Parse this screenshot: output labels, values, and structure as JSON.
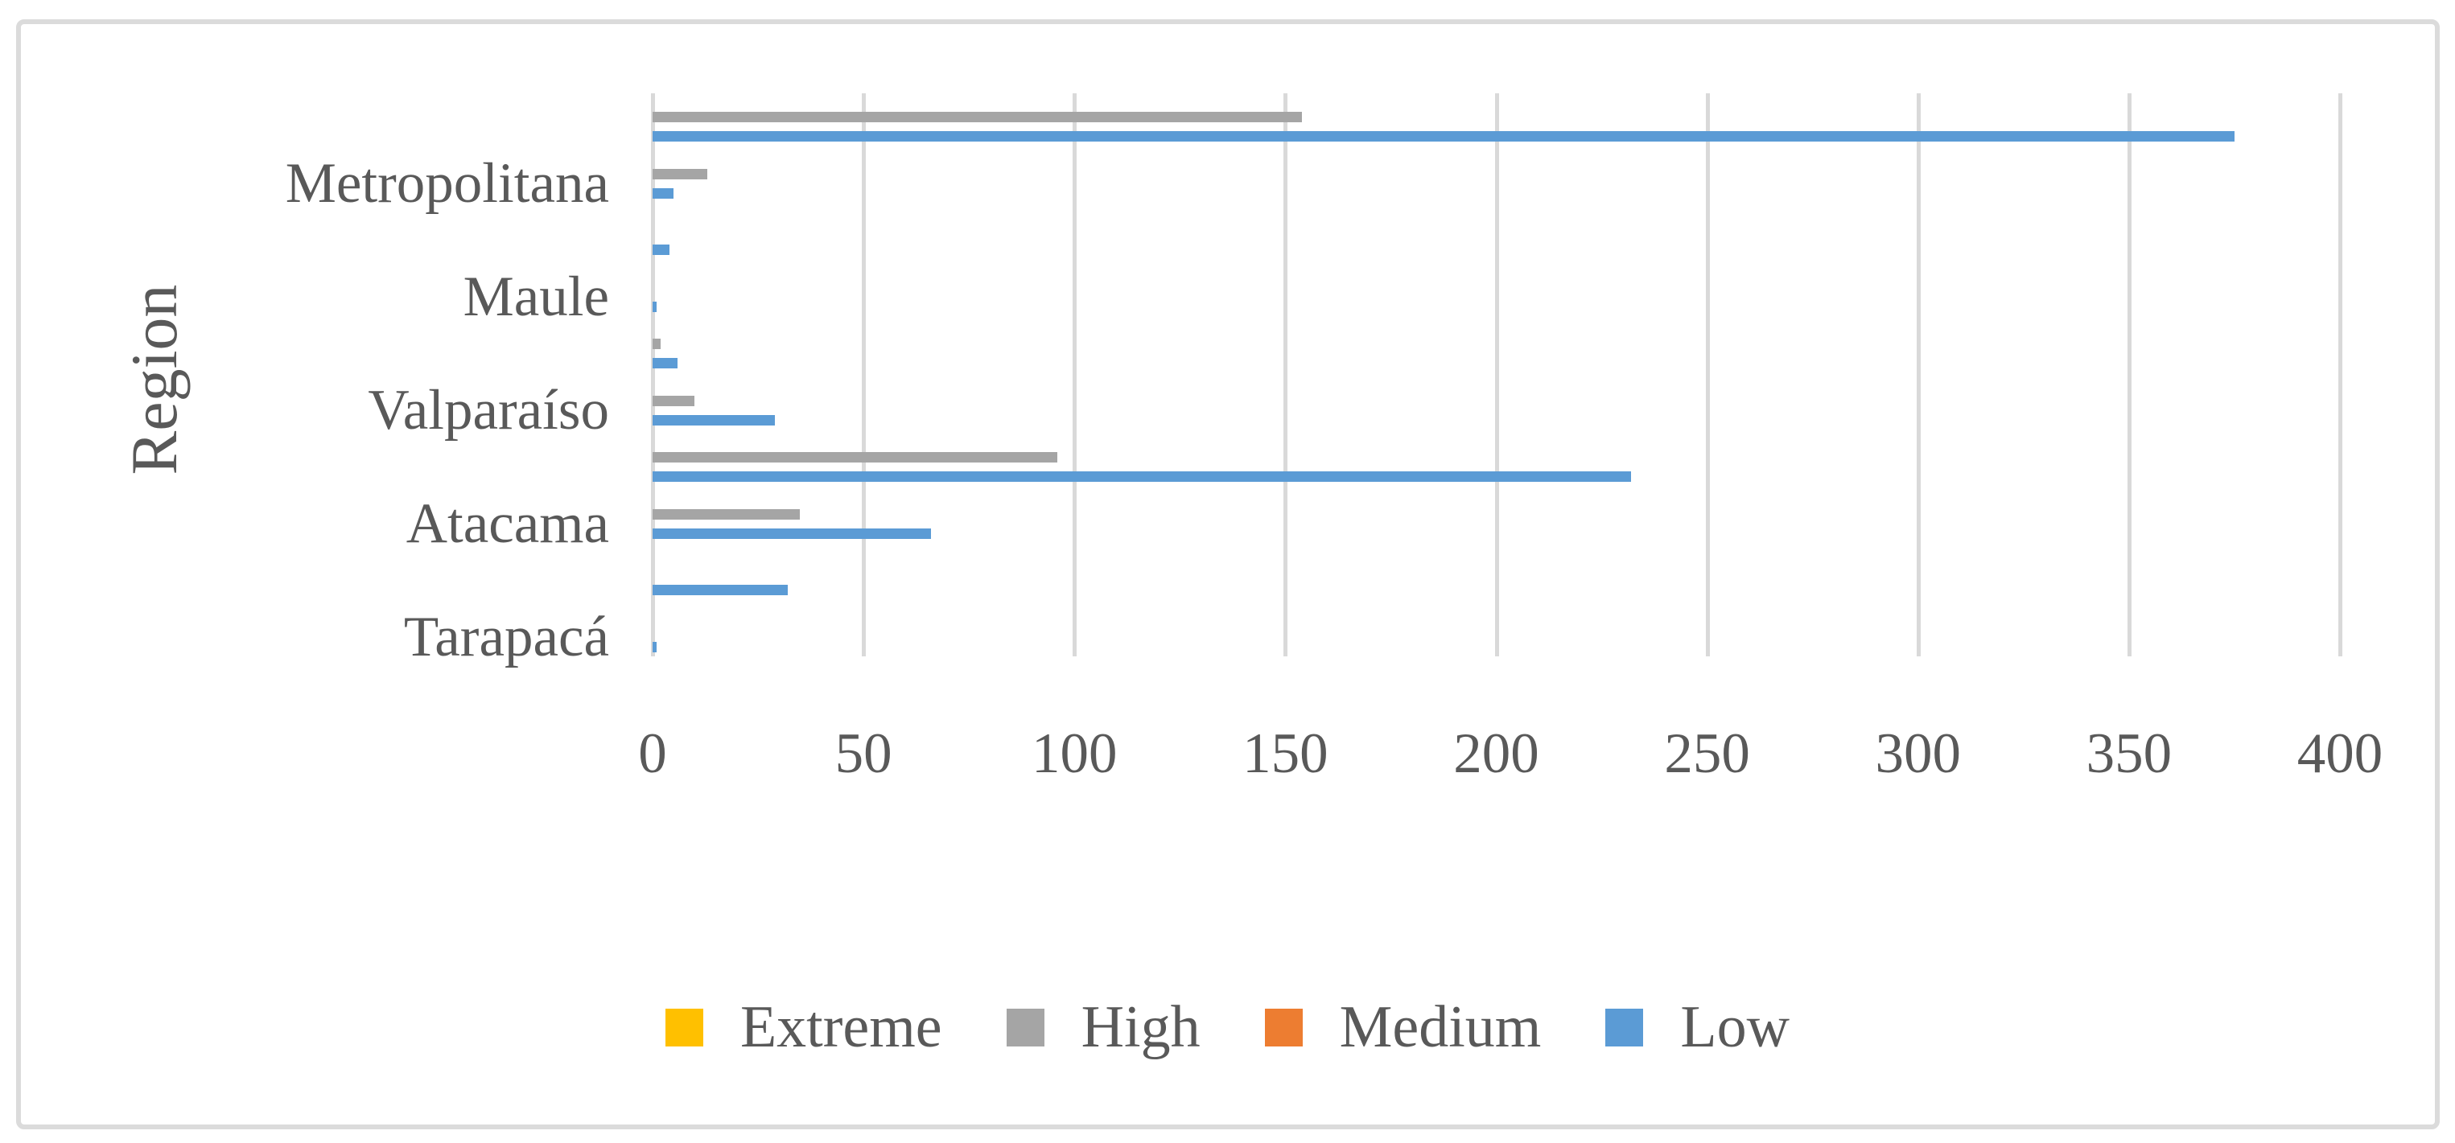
{
  "chart_data": {
    "type": "bar",
    "orientation": "horizontal",
    "title": "",
    "xlabel": "",
    "ylabel": "Region",
    "xlim": [
      0,
      400
    ],
    "grid": true,
    "legend_position": "bottom",
    "xticks": [
      {
        "value": 0,
        "label": "0"
      },
      {
        "value": 50,
        "label": "50"
      },
      {
        "value": 100,
        "label": "100"
      },
      {
        "value": 150,
        "label": "150"
      },
      {
        "value": 200,
        "label": "200"
      },
      {
        "value": 250,
        "label": "250"
      },
      {
        "value": 300,
        "label": "300"
      },
      {
        "value": 350,
        "label": "350"
      },
      {
        "value": 400,
        "label": "400"
      }
    ],
    "series_legend": [
      {
        "name": "Extreme",
        "color": "#FFC000"
      },
      {
        "name": "High",
        "color": "#A5A5A5"
      },
      {
        "name": "Medium",
        "color": "#ED7D31"
      },
      {
        "name": "Low",
        "color": "#5B9BD5"
      }
    ],
    "categories": [
      {
        "label": "",
        "values": {
          "Extreme": 0,
          "High": 154,
          "Medium": 0,
          "Low": 375
        }
      },
      {
        "label": "Metropolitana",
        "values": {
          "Extreme": 0,
          "High": 13,
          "Medium": 0,
          "Low": 5
        }
      },
      {
        "label": "",
        "values": {
          "Extreme": 0,
          "High": 0,
          "Medium": 0,
          "Low": 4
        }
      },
      {
        "label": "Maule",
        "values": {
          "Extreme": 0,
          "High": 0,
          "Medium": 0,
          "Low": 1
        }
      },
      {
        "label": "",
        "values": {
          "Extreme": 0,
          "High": 2,
          "Medium": 0,
          "Low": 6
        }
      },
      {
        "label": "Valparaíso",
        "values": {
          "Extreme": 0,
          "High": 10,
          "Medium": 0,
          "Low": 29
        }
      },
      {
        "label": "",
        "values": {
          "Extreme": 0,
          "High": 96,
          "Medium": 0,
          "Low": 232
        }
      },
      {
        "label": "Atacama",
        "values": {
          "Extreme": 0,
          "High": 35,
          "Medium": 0,
          "Low": 66
        }
      },
      {
        "label": "",
        "values": {
          "Extreme": 0,
          "High": 0,
          "Medium": 0,
          "Low": 32
        }
      },
      {
        "label": "Tarapacá",
        "values": {
          "Extreme": 0,
          "High": 0,
          "Medium": 0,
          "Low": 1
        }
      }
    ],
    "colors": {
      "text": "#595959",
      "gridline": "#D9D9D9",
      "chart_border": "#DBDBDB",
      "background": "#FFFFFF"
    }
  }
}
